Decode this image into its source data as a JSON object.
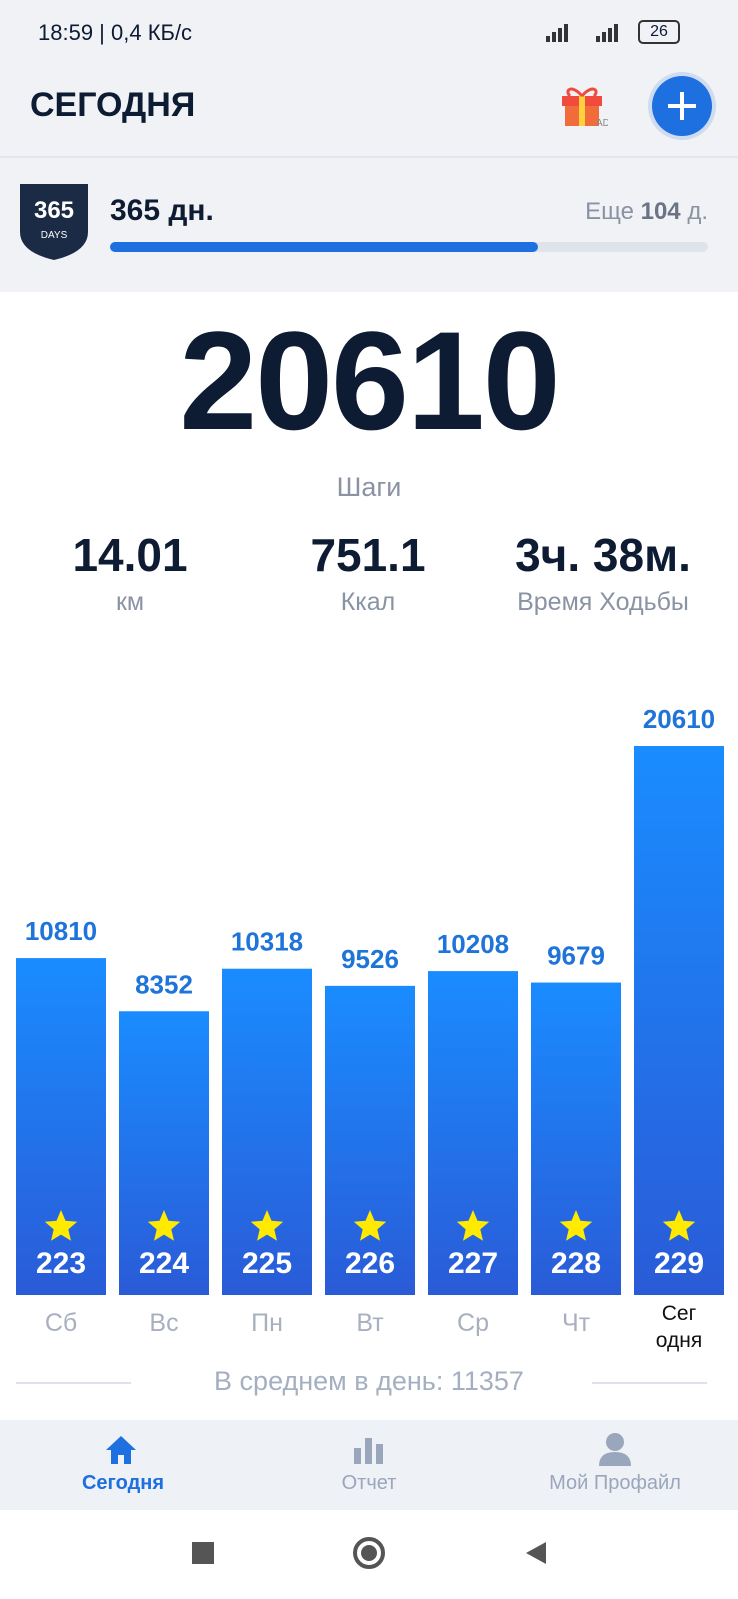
{
  "status_bar": {
    "left": "18:59 | 0,4 КБ/с",
    "battery": "26"
  },
  "header": {
    "title": "СЕГОДНЯ",
    "ad": "AD"
  },
  "streak": {
    "badge": "365",
    "badge_sub": "DAYS",
    "title": "365 дн.",
    "remaining_prefix": "Еще",
    "remaining": 104,
    "remaining_suffix": "д.",
    "total": 365
  },
  "summary": {
    "steps": 20610,
    "steps_label": "Шаги",
    "stats": [
      {
        "value": "14.01",
        "label": "км"
      },
      {
        "value": "751.1",
        "label": "Ккал"
      },
      {
        "value": "3ч. 38м.",
        "label": "Время Ходьбы"
      }
    ]
  },
  "chart": {
    "days": [
      "Сб",
      "Вс",
      "Пн",
      "Вт",
      "Ср",
      "Чт",
      "Сег\nодня"
    ],
    "values": [
      10810,
      8352,
      10318,
      9526,
      10208,
      9679,
      20610
    ],
    "stars": [
      223,
      224,
      225,
      226,
      227,
      228,
      229
    ],
    "color_top": "#1a8cff",
    "color_bottom": "#2a5bd7"
  },
  "average": {
    "label": "В среднем в день:",
    "value": 11357
  },
  "nav": {
    "items": [
      "Сегодня",
      "Отчет",
      "Мой Профайл"
    ]
  }
}
